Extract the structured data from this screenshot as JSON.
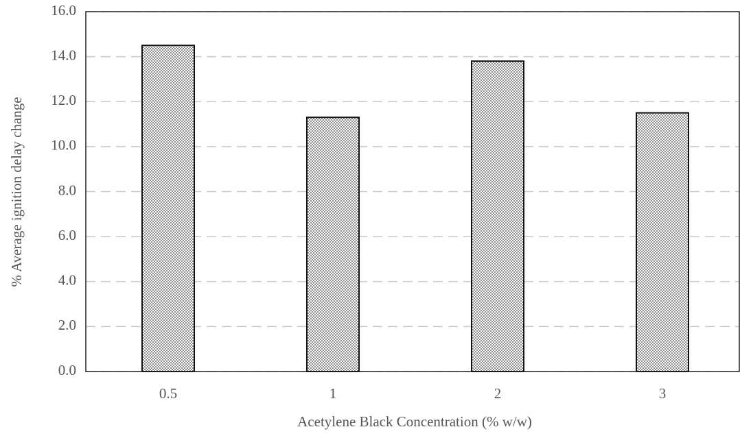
{
  "chart_data": {
    "type": "bar",
    "x_label": "Acetylene Black Concentration (% w/w)",
    "y_label": "% Average ignition delay change",
    "categories": [
      "0.5",
      "1",
      "2",
      "3"
    ],
    "values": [
      14.5,
      11.3,
      13.8,
      11.5
    ],
    "color": "#3a3a3a",
    "ylim": [
      0,
      16
    ],
    "yticks": [
      {
        "value": 0,
        "label": "0.0"
      },
      {
        "value": 2,
        "label": "2.0"
      },
      {
        "value": 4,
        "label": "4.0"
      },
      {
        "value": 6,
        "label": "6.0"
      },
      {
        "value": 8,
        "label": "8.0"
      },
      {
        "value": 10,
        "label": "10.0"
      },
      {
        "value": 12,
        "label": "12.0"
      },
      {
        "value": 14,
        "label": "14.0"
      },
      {
        "value": 16,
        "label": "16.0"
      }
    ],
    "grid": true
  }
}
